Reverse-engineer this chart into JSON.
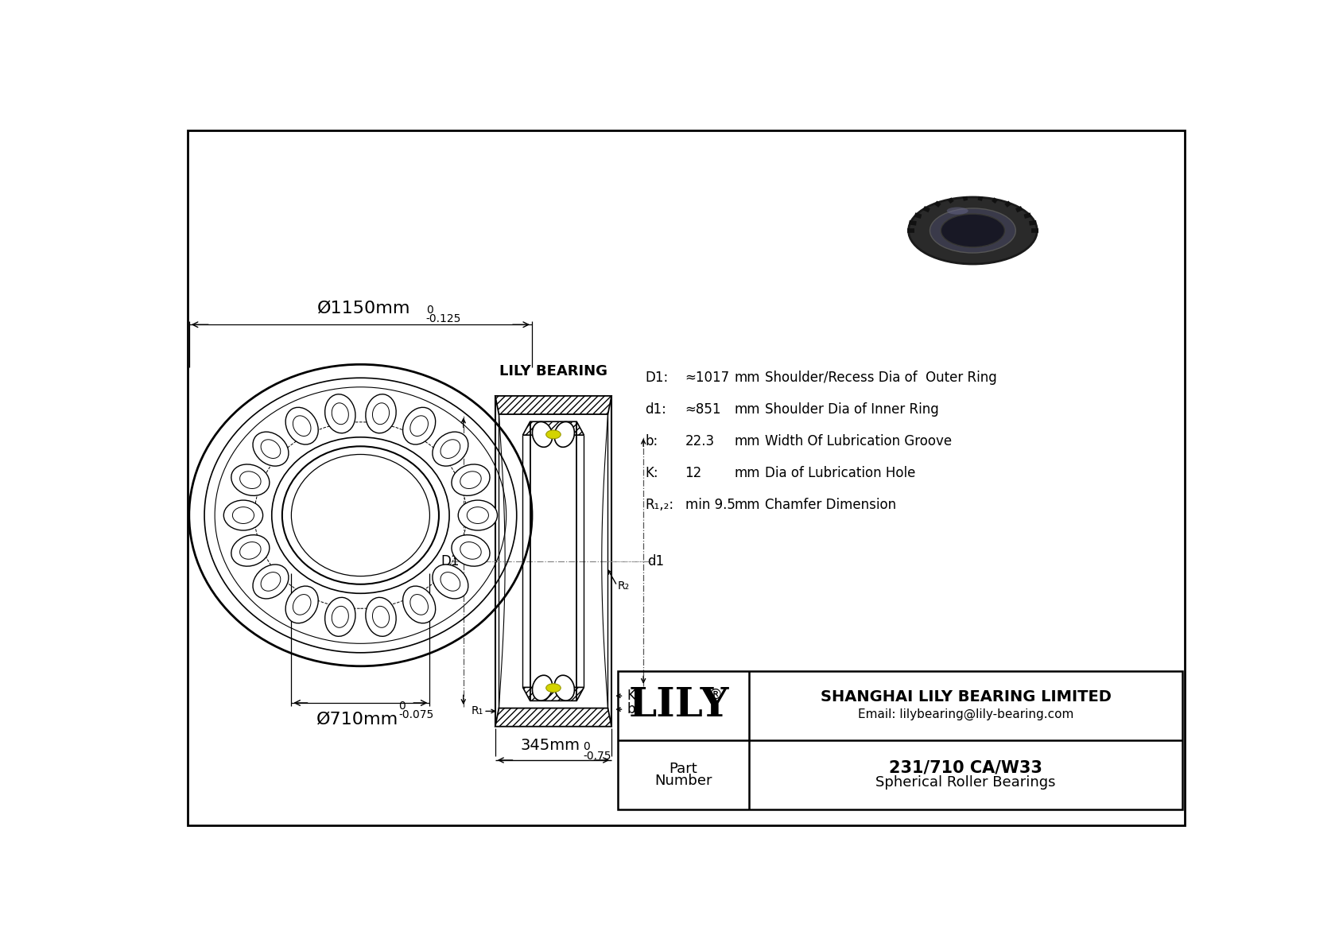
{
  "bg_color": "#ffffff",
  "line_color": "#000000",
  "yellow_color": "#d4d400",
  "outer_diam_text": "Ø1150mm",
  "outer_tol_upper": "0",
  "outer_tol_lower": "-0.125",
  "inner_diam_text": "Ø710mm",
  "inner_tol_upper": "0",
  "inner_tol_lower": "-0.075",
  "width_text": "345mm",
  "width_tol_upper": "0",
  "width_tol_lower": "-0.75",
  "label_b": "b",
  "label_K": "K",
  "label_R1": "R₁",
  "label_R2": "R₂",
  "label_D1": "D1",
  "label_d1": "d1",
  "specs": [
    [
      "D1:",
      "≈1017",
      "mm",
      "Shoulder/Recess Dia of  Outer Ring"
    ],
    [
      "d1:",
      "≈851",
      "mm",
      "Shoulder Dia of Inner Ring"
    ],
    [
      "b:",
      "22.3",
      "mm",
      "Width Of Lubrication Groove"
    ],
    [
      "K:",
      "12",
      "mm",
      "Dia of Lubrication Hole"
    ],
    [
      "R₁,₂:",
      "min 9.5",
      "mm",
      "Chamfer Dimension"
    ]
  ],
  "watermark": "LILY BEARING",
  "company": "SHANGHAI LILY BEARING LIMITED",
  "email": "Email: lilybearing@lily-bearing.com",
  "part_label1": "Part",
  "part_label2": "Number",
  "part_number": "231/710 CA/W33",
  "part_type": "Spherical Roller Bearings",
  "lily_text": "LILY",
  "reg_symbol": "®"
}
